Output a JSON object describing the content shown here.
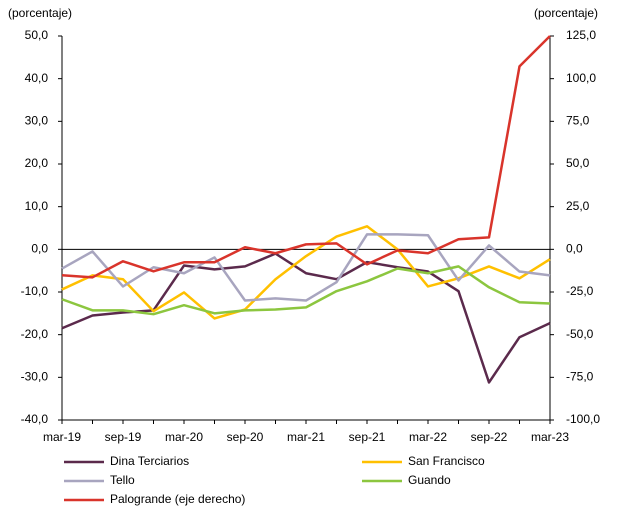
{
  "chart_data": {
    "type": "line",
    "y_label": "(porcentaje)",
    "y2_label": "(porcentaje)",
    "categories": [
      "mar-19",
      null,
      "sep-19",
      null,
      "mar-20",
      null,
      "sep-20",
      null,
      "mar-21",
      null,
      "sep-21",
      null,
      "mar-22",
      null,
      "sep-22",
      null,
      "mar-23"
    ],
    "ylim": [
      -40,
      50
    ],
    "yticks": [
      {
        "value": -40,
        "label": "-40,0"
      },
      {
        "value": -30,
        "label": "-30,0"
      },
      {
        "value": -20,
        "label": "-20,0"
      },
      {
        "value": -10,
        "label": "-10,0"
      },
      {
        "value": 0,
        "label": "0,0"
      },
      {
        "value": 10,
        "label": "10,0"
      },
      {
        "value": 20,
        "label": "20,0"
      },
      {
        "value": 30,
        "label": "30,0"
      },
      {
        "value": 40,
        "label": "40,0"
      },
      {
        "value": 50,
        "label": "50,0"
      }
    ],
    "y2lim": [
      -100,
      125
    ],
    "y2ticks": [
      {
        "value": -100,
        "label": "-100,0"
      },
      {
        "value": -75,
        "label": "-75,0"
      },
      {
        "value": -50,
        "label": "-50,0"
      },
      {
        "value": -25,
        "label": "-25,0"
      },
      {
        "value": 0,
        "label": "0,0"
      },
      {
        "value": 25,
        "label": "25,0"
      },
      {
        "value": 50,
        "label": "50,0"
      },
      {
        "value": 75,
        "label": "75,0"
      },
      {
        "value": 100,
        "label": "100,0"
      },
      {
        "value": 125,
        "label": "125,0"
      }
    ],
    "series": [
      {
        "name": "Dina Terciarios",
        "color": "#5b2a4c",
        "values": [
          -18.5,
          -15.5,
          -14.8,
          -14.3,
          -3.8,
          -4.7,
          -4.0,
          -1.0,
          -5.6,
          -7.0,
          -3.0,
          -4.2,
          -5.2,
          -9.8,
          -31.2,
          -20.6,
          -17.3
        ]
      },
      {
        "name": "San Francisco",
        "color": "#ffc000",
        "values": [
          -9.4,
          -6.1,
          -7.0,
          -14.5,
          -10.1,
          -16.2,
          -14.1,
          -7.0,
          -1.6,
          3.0,
          5.4,
          0,
          -8.7,
          -6.8,
          -4.0,
          -6.8,
          -2.3
        ]
      },
      {
        "name": "Tello",
        "color": "#a8a5bf",
        "values": [
          -4.5,
          -0.5,
          -8.7,
          -4.2,
          -5.6,
          -1.9,
          -12.0,
          -11.5,
          -12.0,
          -7.7,
          3.5,
          3.5,
          3.3,
          -7.3,
          0.9,
          -5.2,
          -6.1
        ]
      },
      {
        "name": "Guando",
        "color": "#8cc63f",
        "values": [
          -11.7,
          -14.3,
          -14.3,
          -15.2,
          -13.1,
          -15.0,
          -14.3,
          -14.1,
          -13.6,
          -9.8,
          -7.5,
          -4.5,
          -5.6,
          -4.0,
          -8.9,
          -12.4,
          -12.7
        ]
      },
      {
        "name": "Palogrande (eje derecho)",
        "color": "#d9342b",
        "axis": "y2",
        "values": [
          -15.2,
          -16.4,
          -7.0,
          -12.9,
          -7.6,
          -7.6,
          1.2,
          -2.3,
          2.9,
          3.5,
          -8.8,
          -0.6,
          -2.3,
          5.9,
          7.0,
          107.2,
          125
        ]
      }
    ]
  }
}
